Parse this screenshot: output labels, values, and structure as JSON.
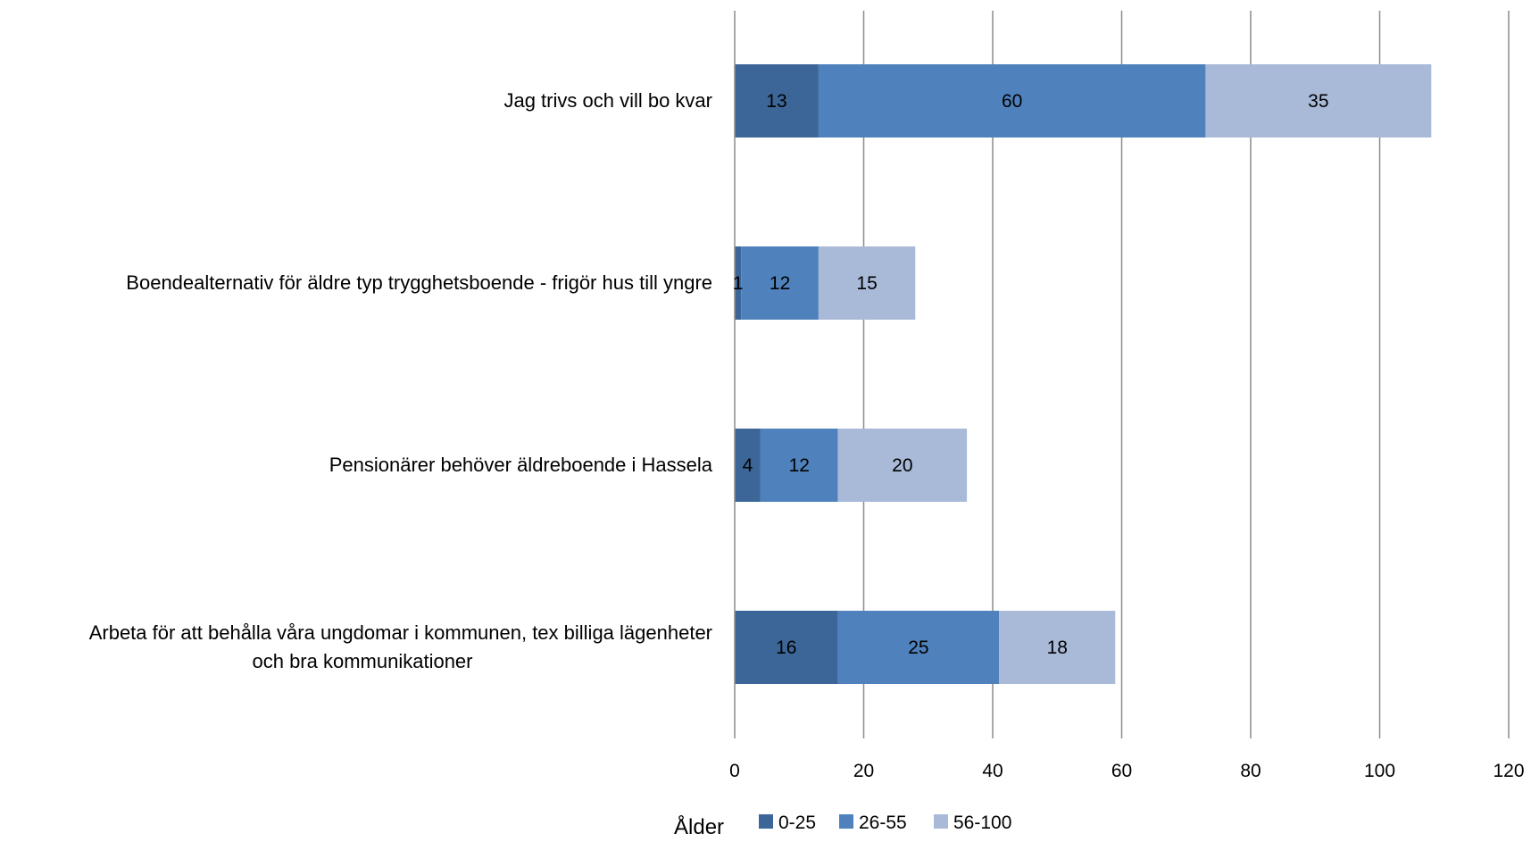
{
  "chart_data": {
    "type": "bar",
    "orientation": "horizontal",
    "stacked": true,
    "categories": [
      [
        "Jag trivs och vill bo kvar"
      ],
      [
        "Boendealternativ för äldre typ trygghetsboende - frigör hus till yngre"
      ],
      [
        "Pensionärer behöver äldreboende i Hassela"
      ],
      [
        "Arbeta för att behålla våra ungdomar i kommunen, tex billiga lägenheter",
        "och bra kommunikationer"
      ]
    ],
    "series": [
      {
        "name": "0-25",
        "color": "#3d6698",
        "values": [
          13,
          1,
          4,
          16
        ]
      },
      {
        "name": "26-55",
        "color": "#4f81bd",
        "values": [
          60,
          12,
          12,
          25
        ]
      },
      {
        "name": "56-100",
        "color": "#a9bad9",
        "values": [
          35,
          15,
          20,
          18
        ]
      }
    ],
    "xlim": [
      0,
      120
    ],
    "xticks": [
      0,
      20,
      40,
      60,
      80,
      100,
      120
    ],
    "grid": true,
    "legend": {
      "title": "Ålder",
      "placement": "bottom"
    }
  }
}
